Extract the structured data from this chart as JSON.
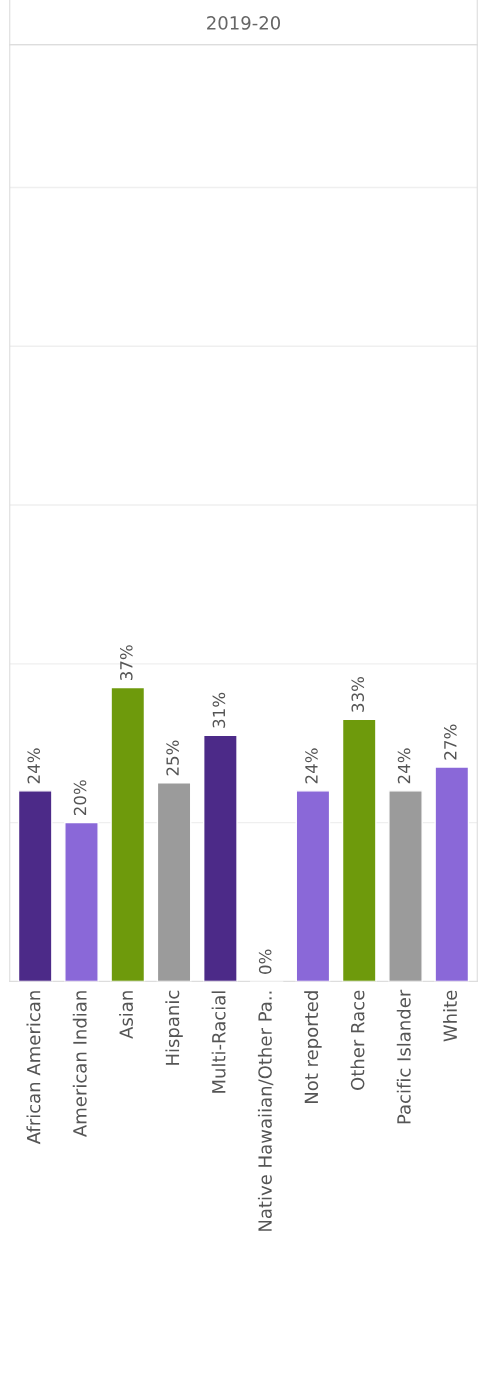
{
  "chart_data": {
    "type": "bar",
    "title": "2019-20",
    "categories": [
      "African American",
      "American Indian",
      "Asian",
      "Hispanic",
      "Multi-Racial",
      "Native Hawaiian/Other Pa..",
      "Not reported",
      "Other Race",
      "Pacific Islander",
      "White"
    ],
    "values": [
      24,
      20,
      37,
      25,
      31,
      0,
      24,
      33,
      24,
      27
    ],
    "colors": [
      "#4c2a88",
      "#8a68d8",
      "#6e9a0c",
      "#9b9b9b",
      "#4c2a88",
      null,
      "#8a68d8",
      "#6e9a0c",
      "#9b9b9b",
      "#8a68d8"
    ],
    "value_labels": [
      "24%",
      "20%",
      "37%",
      "25%",
      "31%",
      "0%",
      "24%",
      "33%",
      "24%",
      "27%"
    ],
    "ylim": [
      0,
      118
    ],
    "yticks": [
      {
        "value": 20,
        "label": null
      },
      {
        "value": 40,
        "label": null
      },
      {
        "value": 60,
        "label": null
      },
      {
        "value": 80,
        "label": null
      },
      {
        "value": 100,
        "label": null
      }
    ],
    "grid": "y",
    "tick_labels": "x"
  }
}
